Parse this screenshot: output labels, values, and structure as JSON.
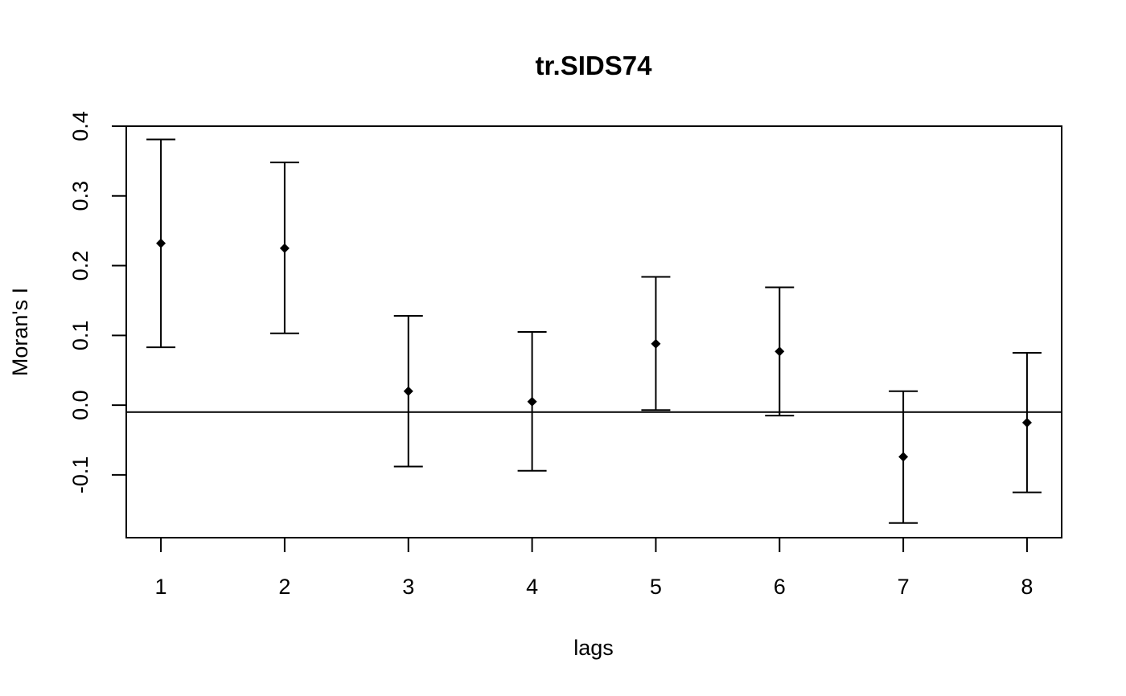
{
  "chart_data": {
    "type": "scatter",
    "title": "tr.SIDS74",
    "xlabel": "lags",
    "ylabel": "Moran's  I",
    "x": [
      1,
      2,
      3,
      4,
      5,
      6,
      7,
      8
    ],
    "series": [
      {
        "values": [
          0.232,
          0.225,
          0.02,
          0.005,
          0.088,
          0.077,
          -0.074,
          -0.025
        ],
        "lower": [
          0.083,
          0.103,
          -0.088,
          -0.094,
          -0.007,
          -0.015,
          -0.169,
          -0.125
        ],
        "upper": [
          0.381,
          0.348,
          0.128,
          0.105,
          0.184,
          0.169,
          0.02,
          0.075
        ]
      }
    ],
    "reference_line": -0.01,
    "xlim": [
      0.72,
      8.28
    ],
    "ylim": [
      -0.19,
      0.4
    ],
    "x_ticks": [
      "1",
      "2",
      "3",
      "4",
      "5",
      "6",
      "7",
      "8"
    ],
    "y_ticks": [
      "-0.1",
      "0.0",
      "0.1",
      "0.2",
      "0.3",
      "0.4"
    ],
    "grid": false,
    "legend": "none"
  }
}
